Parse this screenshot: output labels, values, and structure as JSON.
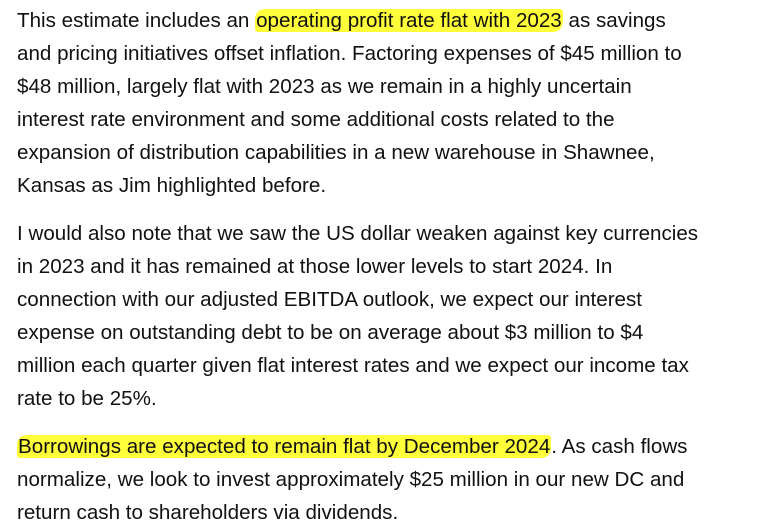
{
  "document": {
    "highlight_color": "#ffff3a",
    "text_color": "#111111",
    "paragraphs": [
      {
        "lines": [
          {
            "before": "This estimate includes an ",
            "highlight": "operating profit rate flat with 2023",
            "after": " as savings"
          },
          "and pricing initiatives offset inflation. Factoring expenses of $45 million to",
          "$48 million, largely flat with 2023 as we remain in a highly uncertain",
          "interest rate environment and some additional costs related to the",
          "expansion of distribution capabilities in a new warehouse in Shawnee,",
          "Kansas as Jim highlighted before."
        ]
      },
      {
        "lines": [
          "I would also note that we saw the US dollar weaken against key currencies",
          "in 2023 and it has remained at those lower levels to start 2024. In",
          "connection with our adjusted EBITDA outlook, we expect our interest",
          "expense on outstanding debt to be on average about $3 million to $4",
          "million each quarter given flat interest rates and we expect our income tax",
          "rate to be 25%."
        ]
      },
      {
        "lines": [
          {
            "highlight": "Borrowings are expected to remain flat by December 2024",
            "after": ". As cash flows"
          },
          "normalize, we look to invest approximately $25 million in our new DC and",
          "return cash to shareholders via dividends."
        ]
      }
    ]
  }
}
